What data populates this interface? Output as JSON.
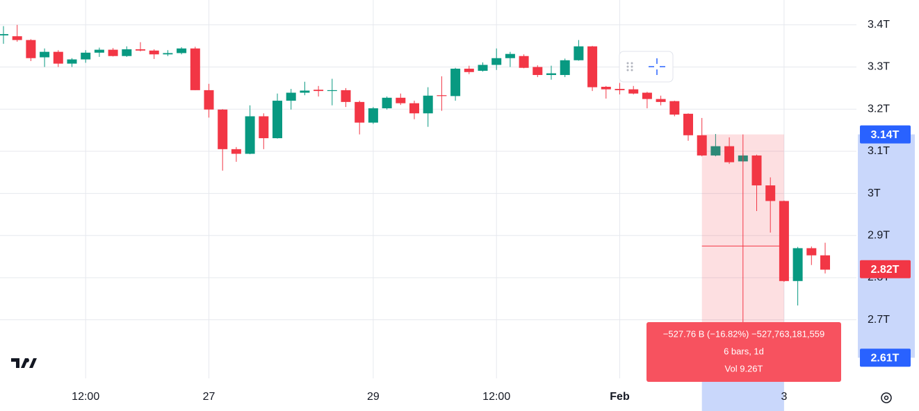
{
  "chart_data": {
    "type": "candlestick",
    "categories": [
      null,
      null,
      null,
      null,
      null,
      null,
      "12:00",
      null,
      null,
      null,
      null,
      null,
      null,
      null,
      null,
      "27",
      null,
      null,
      null,
      null,
      null,
      null,
      null,
      null,
      null,
      null,
      null,
      "29",
      null,
      null,
      null,
      null,
      null,
      null,
      null,
      null,
      "12:00",
      null,
      null,
      null,
      null,
      null,
      null,
      null,
      null,
      "Feb",
      null,
      null,
      null,
      null,
      null,
      null,
      null,
      null,
      null,
      null,
      null,
      "3",
      null,
      null,
      null
    ],
    "open": [
      3.375,
      3.373,
      3.364,
      3.323,
      3.336,
      3.308,
      3.318,
      3.334,
      3.341,
      3.326,
      3.342,
      3.339,
      3.33,
      3.333,
      3.344,
      3.245,
      3.199,
      3.105,
      3.094,
      3.183,
      3.131,
      3.22,
      3.239,
      3.246,
      3.243,
      3.245,
      3.217,
      3.168,
      3.202,
      3.227,
      3.214,
      3.19,
      3.233,
      3.231,
      3.296,
      3.291,
      3.305,
      3.321,
      3.326,
      3.3,
      3.281,
      3.281,
      3.316,
      3.349,
      3.253,
      3.248,
      3.247,
      3.239,
      3.224,
      3.219,
      3.189,
      3.138,
      3.09,
      3.112,
      3.076,
      3.09,
      3.019,
      2.982,
      2.792,
      2.87,
      2.853
    ],
    "high": [
      3.397,
      3.4,
      3.366,
      3.344,
      3.34,
      3.321,
      3.34,
      3.346,
      3.345,
      3.349,
      3.359,
      3.342,
      3.34,
      3.347,
      3.348,
      3.26,
      3.2,
      3.11,
      3.209,
      3.19,
      3.237,
      3.248,
      3.265,
      3.255,
      3.272,
      3.25,
      3.22,
      3.205,
      3.23,
      3.237,
      3.22,
      3.252,
      3.278,
      3.298,
      3.303,
      3.311,
      3.344,
      3.336,
      3.33,
      3.304,
      3.303,
      3.32,
      3.364,
      3.35,
      3.255,
      3.262,
      3.255,
      3.241,
      3.232,
      3.22,
      3.19,
      3.179,
      3.141,
      3.133,
      3.095,
      3.092,
      3.038,
      2.983,
      2.873,
      2.874,
      2.883
    ],
    "low": [
      3.355,
      3.36,
      3.314,
      3.3,
      3.3,
      3.3,
      3.31,
      3.324,
      3.325,
      3.324,
      3.337,
      3.319,
      3.326,
      3.33,
      3.245,
      3.18,
      3.054,
      3.075,
      3.093,
      3.105,
      3.13,
      3.199,
      3.233,
      3.23,
      3.209,
      3.205,
      3.14,
      3.165,
      3.199,
      3.21,
      3.176,
      3.158,
      3.196,
      3.22,
      3.283,
      3.289,
      3.293,
      3.3,
      3.297,
      3.276,
      3.27,
      3.276,
      3.315,
      3.243,
      3.225,
      3.235,
      3.235,
      3.202,
      3.209,
      3.183,
      3.125,
      3.088,
      3.088,
      3.07,
      3.074,
      2.958,
      2.907,
      2.79,
      2.734,
      2.83,
      2.81
    ],
    "close": [
      3.378,
      3.364,
      3.321,
      3.336,
      3.308,
      3.318,
      3.334,
      3.341,
      3.326,
      3.342,
      3.339,
      3.33,
      3.333,
      3.344,
      3.245,
      3.199,
      3.105,
      3.094,
      3.183,
      3.131,
      3.22,
      3.239,
      3.244,
      3.243,
      3.245,
      3.217,
      3.168,
      3.202,
      3.227,
      3.214,
      3.19,
      3.232,
      3.231,
      3.296,
      3.288,
      3.305,
      3.321,
      3.331,
      3.298,
      3.281,
      3.285,
      3.316,
      3.349,
      3.252,
      3.247,
      3.245,
      3.237,
      3.224,
      3.217,
      3.187,
      3.138,
      3.09,
      3.112,
      3.074,
      3.09,
      3.019,
      2.982,
      2.792,
      2.87,
      2.853,
      2.819
    ],
    "up_color": "#089981",
    "down_color": "#f23645",
    "ylim": [
      2.561,
      3.459
    ],
    "yticks": [
      {
        "value": 2.7,
        "label": "2.7T"
      },
      {
        "value": 2.8,
        "label": "2.8T"
      },
      {
        "value": 2.9,
        "label": "2.9T"
      },
      {
        "value": 3,
        "label": "3T"
      },
      {
        "value": 3.1,
        "label": "3.1T"
      },
      {
        "value": 3.2,
        "label": "3.2T"
      },
      {
        "value": 3.3,
        "label": "3.3T"
      },
      {
        "value": 3.4,
        "label": "3.4T"
      }
    ],
    "grid": true,
    "last_price": {
      "value": 2.82,
      "label": "2.82T"
    },
    "range_top": {
      "value": 3.14,
      "label": "3.14T"
    },
    "range_bottom": {
      "value": 2.61,
      "label": "2.61T"
    },
    "measure_tooltip": [
      "−527.76 B (−16.82%) −527,763,181,559",
      "6 bars, 1d",
      "Vol 9.26T"
    ]
  }
}
